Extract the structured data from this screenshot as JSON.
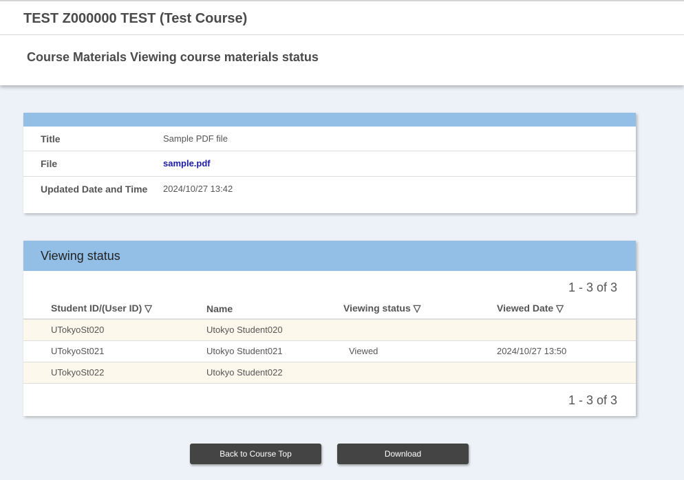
{
  "header": {
    "course_title": "TEST Z000000 TEST (Test Course)",
    "page_title": "Course Materials Viewing course materials status"
  },
  "info": {
    "rows": [
      {
        "label": "Title",
        "value": "Sample PDF file"
      },
      {
        "label": "File",
        "value": "sample.pdf"
      },
      {
        "label": "Updated Date and Time",
        "value": "2024/10/27 13:42"
      }
    ]
  },
  "viewing": {
    "title": "Viewing status",
    "pager_top": "1 - 3 of 3",
    "pager_bottom": "1 - 3 of 3",
    "columns": [
      "Student ID/(User ID) ▽",
      "Name",
      "Viewing status ▽",
      "Viewed Date ▽"
    ],
    "rows": [
      [
        "UTokyoSt020",
        "Utokyo Student020",
        "",
        ""
      ],
      [
        "UTokyoSt021",
        "Utokyo Student021",
        "Viewed",
        "2024/10/27 13:50"
      ],
      [
        "UTokyoSt022",
        "Utokyo Student022",
        "",
        ""
      ]
    ]
  },
  "buttons": {
    "back": "Back to Course Top",
    "download": "Download"
  },
  "colors": {
    "band": "#93bfe6",
    "alt_row": "#fdf8ec",
    "background": "#edf2f8",
    "button": "#444444",
    "link": "#1a1aa6"
  }
}
